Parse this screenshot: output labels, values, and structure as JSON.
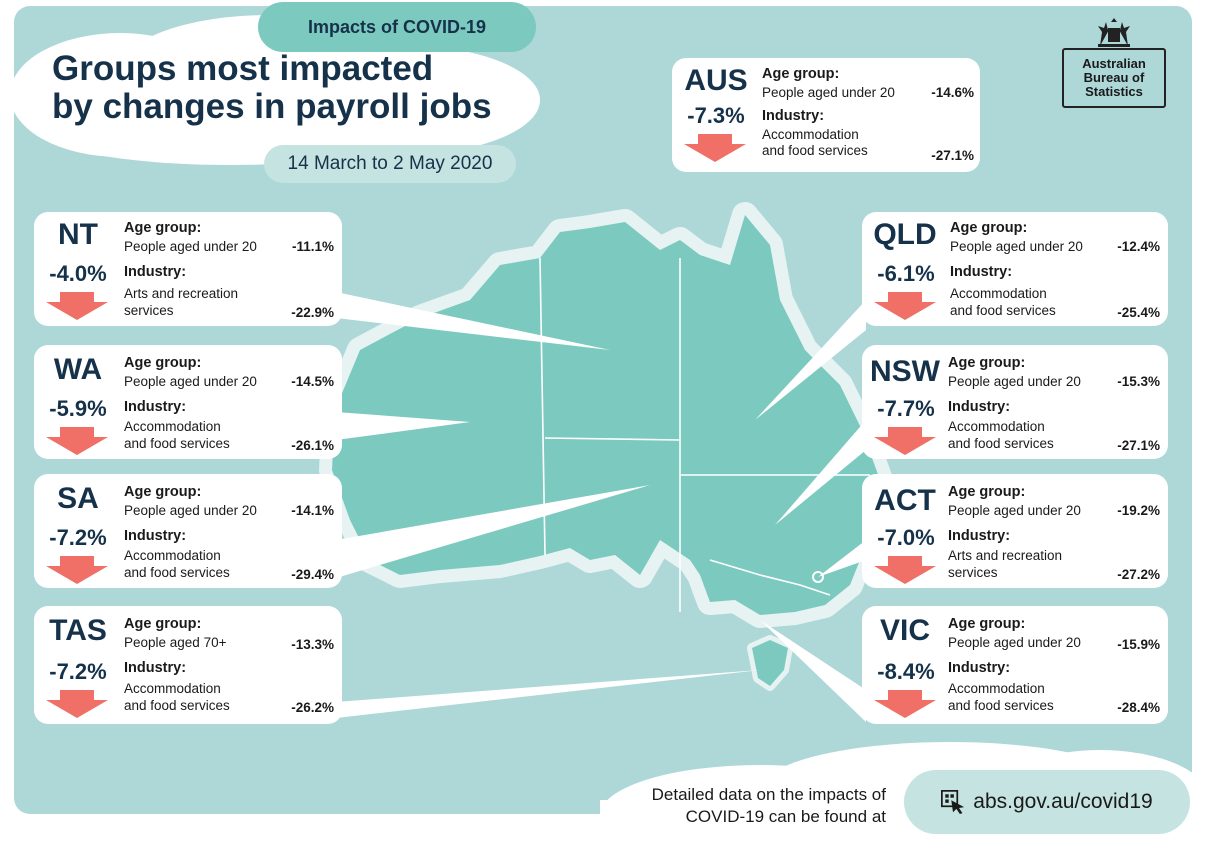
{
  "header": {
    "badge": "Impacts of COVID-19",
    "title_line1": "Groups most impacted",
    "title_line2": "by changes in payroll jobs",
    "date_range": "14 March to 2 May 2020"
  },
  "logo": {
    "line1": "Australian",
    "line2": "Bureau of",
    "line3": "Statistics"
  },
  "colors": {
    "background": "#aed8d8",
    "map": "#7ccabf",
    "arrow": "#f07067",
    "title": "#16324a"
  },
  "labels": {
    "age_group": "Age group:",
    "industry": "Industry:"
  },
  "regions": {
    "aus": {
      "code": "AUS",
      "change": "-7.3%",
      "age_text": "People aged under 20",
      "age_value": "-14.6%",
      "ind_line1": "Accommodation",
      "ind_line2": "and food services",
      "ind_value": "-27.1%"
    },
    "nt": {
      "code": "NT",
      "change": "-4.0%",
      "age_text": "People aged under 20",
      "age_value": "-11.1%",
      "ind_line1": "Arts and recreation",
      "ind_line2": "services",
      "ind_value": "-22.9%"
    },
    "wa": {
      "code": "WA",
      "change": "-5.9%",
      "age_text": "People aged under 20",
      "age_value": "-14.5%",
      "ind_line1": "Accommodation",
      "ind_line2": "and food services",
      "ind_value": "-26.1%"
    },
    "sa": {
      "code": "SA",
      "change": "-7.2%",
      "age_text": "People aged under 20",
      "age_value": "-14.1%",
      "ind_line1": "Accommodation",
      "ind_line2": "and food services",
      "ind_value": "-29.4%"
    },
    "tas": {
      "code": "TAS",
      "change": "-7.2%",
      "age_text": "People aged 70+",
      "age_value": "-13.3%",
      "ind_line1": "Accommodation",
      "ind_line2": "and food services",
      "ind_value": "-26.2%"
    },
    "qld": {
      "code": "QLD",
      "change": "-6.1%",
      "age_text": "People aged under 20",
      "age_value": "-12.4%",
      "ind_line1": "Accommodation",
      "ind_line2": "and food services",
      "ind_value": "-25.4%"
    },
    "nsw": {
      "code": "NSW",
      "change": "-7.7%",
      "age_text": "People aged under 20",
      "age_value": "-15.3%",
      "ind_line1": "Accommodation",
      "ind_line2": "and food services",
      "ind_value": "-27.1%"
    },
    "act": {
      "code": "ACT",
      "change": "-7.0%",
      "age_text": "People aged under 20",
      "age_value": "-19.2%",
      "ind_line1": "Arts and recreation",
      "ind_line2": "services",
      "ind_value": "-27.2%"
    },
    "vic": {
      "code": "VIC",
      "change": "-8.4%",
      "age_text": "People aged under 20",
      "age_value": "-15.9%",
      "ind_line1": "Accommodation",
      "ind_line2": "and food services",
      "ind_value": "-28.4%"
    }
  },
  "footer": {
    "text_line1": "Detailed data on the impacts of",
    "text_line2": "COVID-19 can be found at",
    "link": "abs.gov.au/covid19"
  }
}
